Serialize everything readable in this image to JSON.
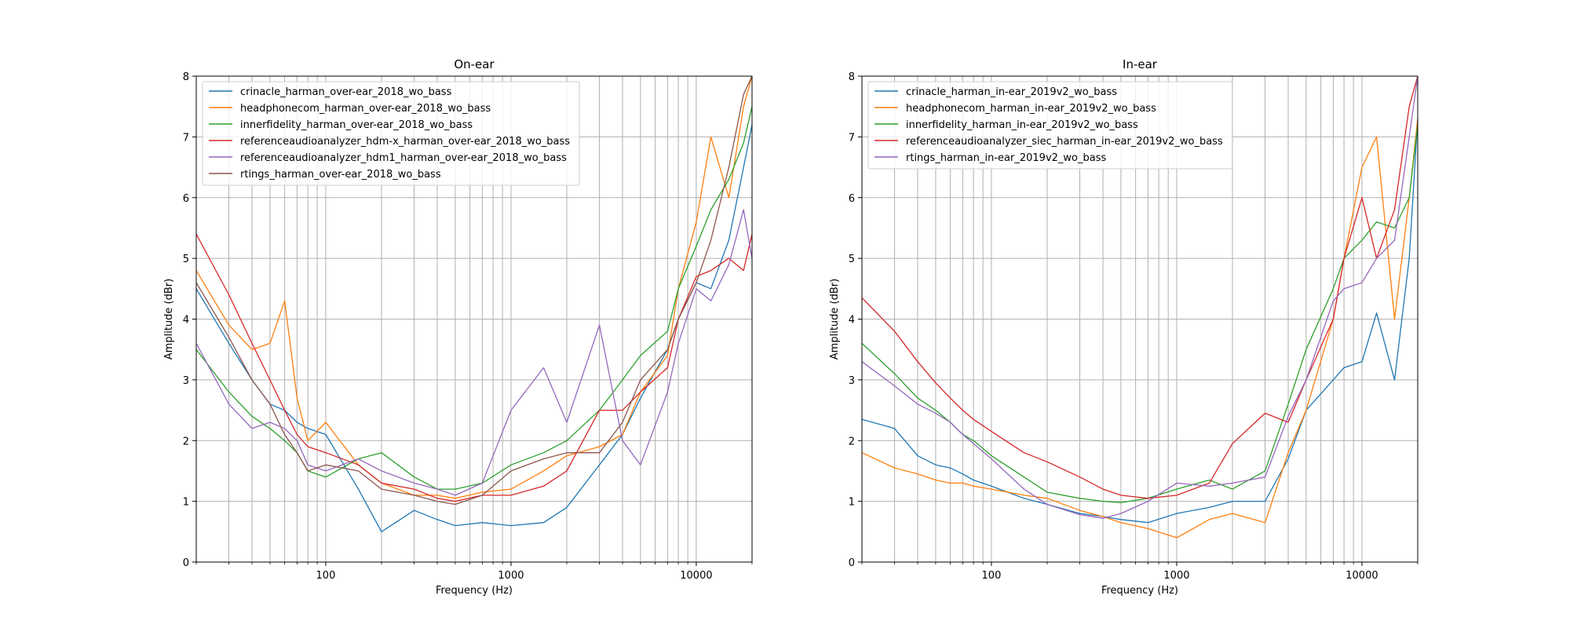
{
  "chart_data": [
    {
      "type": "line",
      "title": "On-ear",
      "xlabel": "Frequency (Hz)",
      "ylabel": "Amplitude (dBr)",
      "xscale": "log",
      "xlim": [
        20,
        20000
      ],
      "ylim": [
        0,
        8
      ],
      "x_ticks": [
        100,
        1000,
        10000
      ],
      "x_tick_labels": [
        "100",
        "1000",
        "10000"
      ],
      "y_ticks": [
        0,
        1,
        2,
        3,
        4,
        5,
        6,
        7,
        8
      ],
      "y_tick_labels": [
        "0",
        "1",
        "2",
        "3",
        "4",
        "5",
        "6",
        "7",
        "8"
      ],
      "grid": true,
      "legend_position": "top-left",
      "x": [
        20,
        30,
        40,
        50,
        60,
        70,
        80,
        100,
        150,
        200,
        300,
        400,
        500,
        700,
        1000,
        1500,
        2000,
        3000,
        4000,
        5000,
        7000,
        8000,
        10000,
        12000,
        15000,
        18000,
        20000
      ],
      "series": [
        {
          "name": "crinacle_harman_over-ear_2018_wo_bass",
          "color": "#1f77b4",
          "values": [
            4.5,
            3.6,
            3.0,
            2.6,
            2.5,
            2.3,
            2.2,
            2.1,
            1.2,
            0.5,
            0.85,
            0.7,
            0.6,
            0.65,
            0.6,
            0.65,
            0.9,
            1.6,
            2.1,
            2.7,
            3.5,
            4.0,
            4.6,
            4.5,
            5.3,
            6.5,
            7.2
          ]
        },
        {
          "name": "headphonecom_harman_over-ear_2018_wo_bass",
          "color": "#ff7f0e",
          "values": [
            4.8,
            3.9,
            3.5,
            3.6,
            4.3,
            2.7,
            2.0,
            2.3,
            1.6,
            1.3,
            1.1,
            1.1,
            1.05,
            1.15,
            1.2,
            1.5,
            1.75,
            1.9,
            2.1,
            2.8,
            3.4,
            4.5,
            5.6,
            7.0,
            6.0,
            7.5,
            8.0
          ]
        },
        {
          "name": "innerfidelity_harman_over-ear_2018_wo_bass",
          "color": "#2ca02c",
          "values": [
            3.5,
            2.8,
            2.4,
            2.2,
            2.0,
            1.8,
            1.5,
            1.4,
            1.7,
            1.8,
            1.4,
            1.2,
            1.2,
            1.3,
            1.6,
            1.8,
            2.0,
            2.5,
            3.0,
            3.4,
            3.8,
            4.5,
            5.2,
            5.8,
            6.3,
            6.9,
            7.5
          ]
        },
        {
          "name": "referenceaudioanalyzer_hdm-x_harman_over-ear_2018_wo_bass",
          "color": "#d62728",
          "values": [
            5.4,
            4.4,
            3.6,
            3.0,
            2.5,
            2.1,
            1.9,
            1.8,
            1.6,
            1.3,
            1.2,
            1.05,
            1.0,
            1.1,
            1.1,
            1.25,
            1.5,
            2.5,
            2.5,
            2.8,
            3.2,
            4.0,
            4.7,
            4.8,
            5.0,
            4.8,
            5.4
          ]
        },
        {
          "name": "referenceaudioanalyzer_hdm1_harman_over-ear_2018_wo_bass",
          "color": "#9467bd",
          "values": [
            3.6,
            2.6,
            2.2,
            2.3,
            2.2,
            2.0,
            1.6,
            1.5,
            1.7,
            1.5,
            1.3,
            1.2,
            1.1,
            1.3,
            2.5,
            3.2,
            2.3,
            3.9,
            2.0,
            1.6,
            2.8,
            3.6,
            4.5,
            4.3,
            4.9,
            5.8,
            5.0
          ]
        },
        {
          "name": "rtings_harman_over-ear_2018_wo_bass",
          "color": "#8c564b",
          "values": [
            4.6,
            3.7,
            3.0,
            2.6,
            2.1,
            1.8,
            1.5,
            1.6,
            1.5,
            1.2,
            1.1,
            1.0,
            0.95,
            1.1,
            1.5,
            1.7,
            1.8,
            1.8,
            2.3,
            3.0,
            3.5,
            4.0,
            4.6,
            5.3,
            6.5,
            7.7,
            8.0
          ]
        }
      ]
    },
    {
      "type": "line",
      "title": "In-ear",
      "xlabel": "Frequency (Hz)",
      "ylabel": "Amplitude (dBr)",
      "xscale": "log",
      "xlim": [
        20,
        20000
      ],
      "ylim": [
        0,
        8
      ],
      "x_ticks": [
        100,
        1000,
        10000
      ],
      "x_tick_labels": [
        "100",
        "1000",
        "10000"
      ],
      "y_ticks": [
        0,
        1,
        2,
        3,
        4,
        5,
        6,
        7,
        8
      ],
      "y_tick_labels": [
        "0",
        "1",
        "2",
        "3",
        "4",
        "5",
        "6",
        "7",
        "8"
      ],
      "grid": true,
      "legend_position": "top-left",
      "x": [
        20,
        30,
        40,
        50,
        60,
        70,
        80,
        100,
        150,
        200,
        300,
        400,
        500,
        700,
        1000,
        1500,
        2000,
        3000,
        4000,
        5000,
        7000,
        8000,
        10000,
        12000,
        15000,
        18000,
        20000
      ],
      "series": [
        {
          "name": "crinacle_harman_in-ear_2019v2_wo_bass",
          "color": "#1f77b4",
          "values": [
            2.35,
            2.2,
            1.75,
            1.6,
            1.55,
            1.45,
            1.35,
            1.25,
            1.05,
            0.95,
            0.8,
            0.75,
            0.7,
            0.65,
            0.8,
            0.9,
            1.0,
            1.0,
            1.7,
            2.5,
            3.0,
            3.2,
            3.3,
            4.1,
            3.0,
            5.0,
            7.3
          ]
        },
        {
          "name": "headphonecom_harman_in-ear_2019v2_wo_bass",
          "color": "#ff7f0e",
          "values": [
            1.8,
            1.55,
            1.45,
            1.35,
            1.3,
            1.3,
            1.25,
            1.2,
            1.1,
            1.05,
            0.85,
            0.75,
            0.65,
            0.55,
            0.4,
            0.7,
            0.8,
            0.65,
            1.8,
            2.5,
            4.0,
            5.0,
            6.5,
            7.0,
            4.0,
            6.0,
            7.3
          ]
        },
        {
          "name": "innerfidelity_harman_in-ear_2019v2_wo_bass",
          "color": "#2ca02c",
          "values": [
            3.6,
            3.1,
            2.7,
            2.5,
            2.3,
            2.1,
            2.0,
            1.75,
            1.4,
            1.15,
            1.05,
            1.0,
            0.98,
            1.05,
            1.2,
            1.35,
            1.2,
            1.5,
            2.6,
            3.5,
            4.5,
            5.0,
            5.3,
            5.6,
            5.5,
            6.0,
            7.2
          ]
        },
        {
          "name": "referenceaudioanalyzer_siec_harman_in-ear_2019v2_wo_bass",
          "color": "#d62728",
          "values": [
            4.35,
            3.8,
            3.3,
            2.95,
            2.7,
            2.5,
            2.35,
            2.15,
            1.8,
            1.65,
            1.4,
            1.2,
            1.1,
            1.05,
            1.1,
            1.3,
            1.95,
            2.45,
            2.3,
            3.0,
            4.0,
            5.0,
            6.0,
            5.0,
            5.8,
            7.5,
            8.0
          ]
        },
        {
          "name": "rtings_harman_in-ear_2019v2_wo_bass",
          "color": "#9467bd",
          "values": [
            3.3,
            2.9,
            2.6,
            2.45,
            2.3,
            2.1,
            1.95,
            1.7,
            1.2,
            0.95,
            0.78,
            0.72,
            0.8,
            1.0,
            1.3,
            1.25,
            1.3,
            1.4,
            2.4,
            3.0,
            4.3,
            4.5,
            4.6,
            5.0,
            5.3,
            7.0,
            8.0
          ]
        }
      ]
    }
  ]
}
